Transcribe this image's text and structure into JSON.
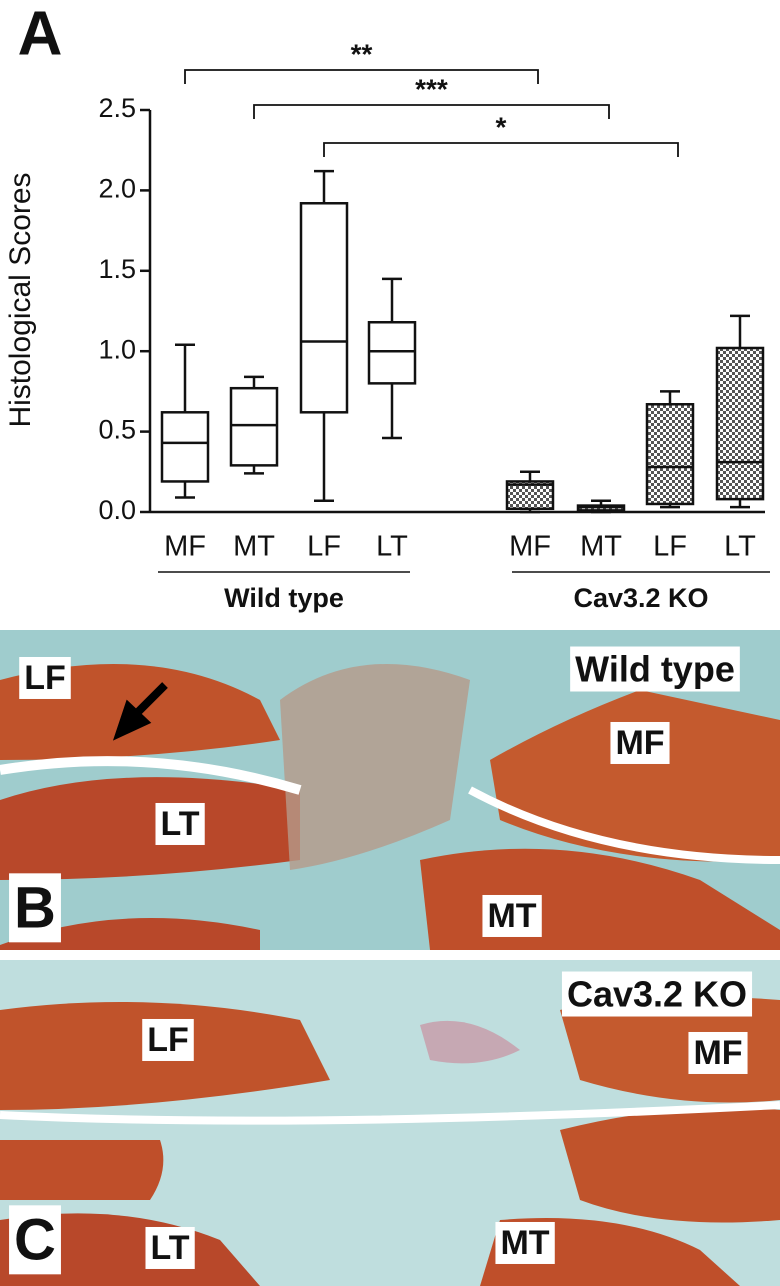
{
  "chart_data": {
    "type": "box",
    "panel": "A",
    "y_label": "Histological Scores",
    "ylim": [
      0,
      2.5
    ],
    "yticks": [
      {
        "value": 0,
        "label": "0.0"
      },
      0.5,
      {
        "value": 1,
        "label": "1.0"
      },
      1.5,
      {
        "value": 2,
        "label": "2.0"
      },
      2.5
    ],
    "groups": [
      {
        "name": "Wild type",
        "patterned": false,
        "categories": [
          "MF",
          "MT",
          "LF",
          "LT"
        ],
        "boxes": [
          {
            "low": 0.09,
            "q1": 0.19,
            "median": 0.43,
            "q3": 0.62,
            "high": 1.04
          },
          {
            "low": 0.24,
            "q1": 0.29,
            "median": 0.54,
            "q3": 0.77,
            "high": 0.84
          },
          {
            "low": 0.07,
            "q1": 0.62,
            "median": 1.06,
            "q3": 1.92,
            "high": 2.12
          },
          {
            "low": 0.46,
            "q1": 0.8,
            "median": 1.0,
            "q3": 1.18,
            "high": 1.45
          }
        ]
      },
      {
        "name": "Cav3.2 KO",
        "patterned": true,
        "categories": [
          "MF",
          "MT",
          "LF",
          "LT"
        ],
        "boxes": [
          {
            "low": 0.0,
            "q1": 0.02,
            "median": 0.17,
            "q3": 0.19,
            "high": 0.25
          },
          {
            "low": 0.0,
            "q1": 0.01,
            "median": 0.03,
            "q3": 0.04,
            "high": 0.07
          },
          {
            "low": 0.03,
            "q1": 0.05,
            "median": 0.28,
            "q3": 0.67,
            "high": 0.75
          },
          {
            "low": 0.03,
            "q1": 0.08,
            "median": 0.31,
            "q3": 1.02,
            "high": 1.22
          }
        ]
      }
    ],
    "significance": [
      "**",
      "***",
      "*"
    ]
  },
  "panels": [
    {
      "letter": "B",
      "title": "Wild type",
      "labels": [
        "LF",
        "MF",
        "LT",
        "MT"
      ]
    },
    {
      "letter": "C",
      "title": "Cav3.2 KO",
      "labels": [
        "LF",
        "MF",
        "LT",
        "MT"
      ]
    }
  ]
}
